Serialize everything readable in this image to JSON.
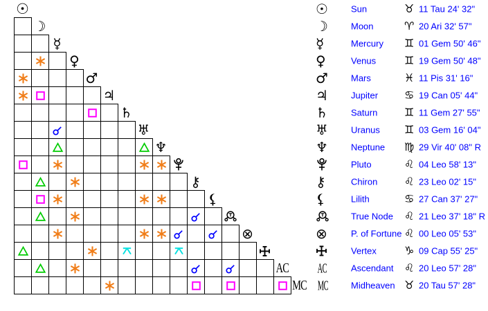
{
  "colors": {
    "background": "#ffffff",
    "grid_line": "#000000",
    "glyph": "#000000",
    "legend_text": "#0000ff",
    "sextile": "#f07d18",
    "square": "#ff00ff",
    "trine": "#00cc00",
    "conjunction": "#0000ff",
    "quincunx": "#00e0e0"
  },
  "points": [
    {
      "id": "sun",
      "name": "Sun",
      "glyph": "☉",
      "glyph_kind": "text",
      "sign_id": "taurus",
      "sign_glyph": "♉",
      "position": "11 Tau 24' 32\""
    },
    {
      "id": "moon",
      "name": "Moon",
      "glyph": "☽",
      "glyph_kind": "text",
      "sign_id": "aries",
      "sign_glyph": "♈",
      "position": "20 Ari 32' 57\""
    },
    {
      "id": "mercury",
      "name": "Mercury",
      "glyph": "☿",
      "glyph_kind": "text",
      "sign_id": "gemini",
      "sign_glyph": "♊",
      "position": "01 Gem 50' 46\""
    },
    {
      "id": "venus",
      "name": "Venus",
      "glyph": "♀",
      "glyph_kind": "text",
      "sign_id": "gemini",
      "sign_glyph": "♊",
      "position": "19 Gem 50' 48\""
    },
    {
      "id": "mars",
      "name": "Mars",
      "glyph": "♂",
      "glyph_kind": "text",
      "sign_id": "pisces",
      "sign_glyph": "♓",
      "position": "11 Pis 31' 16\""
    },
    {
      "id": "jupiter",
      "name": "Jupiter",
      "glyph": "♃",
      "glyph_kind": "text",
      "sign_id": "cancer",
      "sign_glyph": "♋",
      "position": "19 Can 05' 44\""
    },
    {
      "id": "saturn",
      "name": "Saturn",
      "glyph": "♄",
      "glyph_kind": "text",
      "sign_id": "gemini",
      "sign_glyph": "♊",
      "position": "11 Gem 27' 55\""
    },
    {
      "id": "uranus",
      "name": "Uranus",
      "glyph": "♅",
      "glyph_kind": "text",
      "sign_id": "gemini",
      "sign_glyph": "♊",
      "position": "03 Gem 16' 04\""
    },
    {
      "id": "neptune",
      "name": "Neptune",
      "glyph": "♆",
      "glyph_kind": "text",
      "sign_id": "virgo",
      "sign_glyph": "♍",
      "position": "29 Vir 40' 08\" R"
    },
    {
      "id": "pluto",
      "name": "Pluto",
      "glyph": "♇",
      "glyph_kind": "pluto",
      "sign_id": "leo",
      "sign_glyph": "♌",
      "position": "04 Leo 58' 13\""
    },
    {
      "id": "chiron",
      "name": "Chiron",
      "glyph": "⚷",
      "glyph_kind": "text",
      "sign_id": "leo",
      "sign_glyph": "♌",
      "position": "23 Leo 02' 15\""
    },
    {
      "id": "lilith",
      "name": "Lilith",
      "glyph": "⚸",
      "glyph_kind": "text",
      "sign_id": "cancer",
      "sign_glyph": "♋",
      "position": "27 Can 37' 27\""
    },
    {
      "id": "true-node",
      "name": "True Node",
      "glyph": "☊",
      "glyph_kind": "truenode",
      "sign_id": "leo",
      "sign_glyph": "♌",
      "position": "21 Leo 37' 18\" R"
    },
    {
      "id": "p-of-fortune",
      "name": "P. of Fortune",
      "glyph": "⊗",
      "glyph_kind": "text",
      "sign_id": "leo",
      "sign_glyph": "♌",
      "position": "00 Leo 05' 53\""
    },
    {
      "id": "vertex",
      "name": "Vertex",
      "glyph": "✛",
      "glyph_kind": "vertex",
      "sign_id": "capricorn",
      "sign_glyph": "♑",
      "position": "09 Cap 55' 25\""
    },
    {
      "id": "ascendant",
      "name": "Ascendant",
      "glyph": "AC",
      "glyph_kind": "latin",
      "sign_id": "leo",
      "sign_glyph": "♌",
      "position": "20 Leo 57' 28\""
    },
    {
      "id": "midheaven",
      "name": "Midheaven",
      "glyph": "MC",
      "glyph_kind": "latin",
      "sign_id": "taurus",
      "sign_glyph": "♉",
      "position": "20 Tau 57' 28\""
    }
  ],
  "aspects": [
    {
      "r": 3,
      "c": 1,
      "between": [
        "Venus",
        "Moon"
      ],
      "type": "sextile"
    },
    {
      "r": 4,
      "c": 0,
      "between": [
        "Mars",
        "Sun"
      ],
      "type": "sextile"
    },
    {
      "r": 5,
      "c": 0,
      "between": [
        "Jupiter",
        "Sun"
      ],
      "type": "sextile"
    },
    {
      "r": 5,
      "c": 1,
      "between": [
        "Jupiter",
        "Moon"
      ],
      "type": "square"
    },
    {
      "r": 6,
      "c": 4,
      "between": [
        "Saturn",
        "Mars"
      ],
      "type": "square"
    },
    {
      "r": 7,
      "c": 2,
      "between": [
        "Uranus",
        "Mercury"
      ],
      "type": "conjunction"
    },
    {
      "r": 8,
      "c": 2,
      "between": [
        "Neptune",
        "Mercury"
      ],
      "type": "trine"
    },
    {
      "r": 8,
      "c": 7,
      "between": [
        "Neptune",
        "Uranus"
      ],
      "type": "trine"
    },
    {
      "r": 9,
      "c": 0,
      "between": [
        "Pluto",
        "Sun"
      ],
      "type": "square"
    },
    {
      "r": 9,
      "c": 2,
      "between": [
        "Pluto",
        "Mercury"
      ],
      "type": "sextile"
    },
    {
      "r": 9,
      "c": 7,
      "between": [
        "Pluto",
        "Uranus"
      ],
      "type": "sextile"
    },
    {
      "r": 9,
      "c": 8,
      "between": [
        "Pluto",
        "Neptune"
      ],
      "type": "sextile"
    },
    {
      "r": 10,
      "c": 1,
      "between": [
        "Chiron",
        "Moon"
      ],
      "type": "trine"
    },
    {
      "r": 10,
      "c": 3,
      "between": [
        "Chiron",
        "Venus"
      ],
      "type": "sextile"
    },
    {
      "r": 11,
      "c": 1,
      "between": [
        "Lilith",
        "Moon"
      ],
      "type": "square"
    },
    {
      "r": 11,
      "c": 2,
      "between": [
        "Lilith",
        "Mercury"
      ],
      "type": "sextile"
    },
    {
      "r": 11,
      "c": 7,
      "between": [
        "Lilith",
        "Uranus"
      ],
      "type": "sextile"
    },
    {
      "r": 11,
      "c": 8,
      "between": [
        "Lilith",
        "Neptune"
      ],
      "type": "sextile"
    },
    {
      "r": 12,
      "c": 1,
      "between": [
        "True Node",
        "Moon"
      ],
      "type": "trine"
    },
    {
      "r": 12,
      "c": 3,
      "between": [
        "True Node",
        "Venus"
      ],
      "type": "sextile"
    },
    {
      "r": 12,
      "c": 10,
      "between": [
        "True Node",
        "Chiron"
      ],
      "type": "conjunction"
    },
    {
      "r": 13,
      "c": 2,
      "between": [
        "P. of Fortune",
        "Mercury"
      ],
      "type": "sextile"
    },
    {
      "r": 13,
      "c": 7,
      "between": [
        "P. of Fortune",
        "Uranus"
      ],
      "type": "sextile"
    },
    {
      "r": 13,
      "c": 8,
      "between": [
        "P. of Fortune",
        "Neptune"
      ],
      "type": "sextile"
    },
    {
      "r": 13,
      "c": 9,
      "between": [
        "P. of Fortune",
        "Pluto"
      ],
      "type": "conjunction"
    },
    {
      "r": 13,
      "c": 11,
      "between": [
        "P. of Fortune",
        "Lilith"
      ],
      "type": "conjunction"
    },
    {
      "r": 14,
      "c": 0,
      "between": [
        "Vertex",
        "Sun"
      ],
      "type": "trine"
    },
    {
      "r": 14,
      "c": 4,
      "between": [
        "Vertex",
        "Mars"
      ],
      "type": "sextile"
    },
    {
      "r": 14,
      "c": 6,
      "between": [
        "Vertex",
        "Saturn"
      ],
      "type": "quincunx"
    },
    {
      "r": 14,
      "c": 9,
      "between": [
        "Vertex",
        "Pluto"
      ],
      "type": "quincunx"
    },
    {
      "r": 15,
      "c": 1,
      "between": [
        "Ascendant",
        "Moon"
      ],
      "type": "trine"
    },
    {
      "r": 15,
      "c": 3,
      "between": [
        "Ascendant",
        "Venus"
      ],
      "type": "sextile"
    },
    {
      "r": 15,
      "c": 10,
      "between": [
        "Ascendant",
        "Chiron"
      ],
      "type": "conjunction"
    },
    {
      "r": 15,
      "c": 12,
      "between": [
        "Ascendant",
        "True Node"
      ],
      "type": "conjunction"
    },
    {
      "r": 16,
      "c": 5,
      "between": [
        "Midheaven",
        "Jupiter"
      ],
      "type": "sextile"
    },
    {
      "r": 16,
      "c": 10,
      "between": [
        "Midheaven",
        "Chiron"
      ],
      "type": "square"
    },
    {
      "r": 16,
      "c": 12,
      "between": [
        "Midheaven",
        "True Node"
      ],
      "type": "square"
    },
    {
      "r": 16,
      "c": 15,
      "between": [
        "Midheaven",
        "Ascendant"
      ],
      "type": "square"
    }
  ]
}
